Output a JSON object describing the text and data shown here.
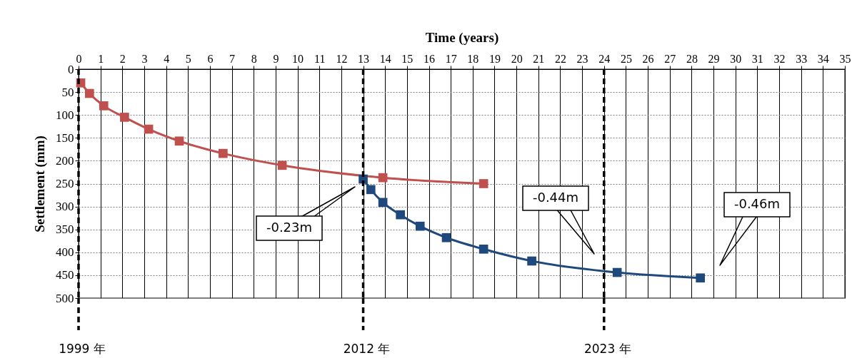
{
  "chart_data": {
    "type": "line",
    "xlabel": "Time (years)",
    "ylabel": "Settlement (mm)",
    "xlim": [
      0,
      35
    ],
    "xticks": [
      0,
      1,
      2,
      3,
      4,
      5,
      6,
      7,
      8,
      9,
      10,
      11,
      12,
      13,
      14,
      15,
      16,
      17,
      18,
      19,
      20,
      21,
      22,
      23,
      24,
      25,
      26,
      27,
      28,
      29,
      30,
      31,
      32,
      33,
      34,
      35
    ],
    "ylim": [
      500,
      0
    ],
    "yticks": [
      0,
      50,
      100,
      150,
      200,
      250,
      300,
      350,
      400,
      450,
      500
    ],
    "grid": true,
    "marker": "square",
    "line_style": "solid",
    "series": [
      {
        "color": "#c0504d",
        "x": [
          0.1,
          0.5,
          1.15,
          2.1,
          3.2,
          4.6,
          6.6,
          9.3,
          13.9,
          18.5
        ],
        "values": [
          30,
          53,
          80,
          105,
          131,
          157,
          184,
          210,
          237,
          250
        ]
      },
      {
        "color": "#1f497d",
        "x": [
          13,
          13.35,
          13.9,
          14.7,
          15.6,
          16.8,
          18.5,
          20.7,
          24.6,
          28.4
        ],
        "values": [
          240,
          263,
          291,
          318,
          343,
          368,
          393,
          419,
          444,
          456
        ]
      }
    ],
    "ref_lines": [
      {
        "axis": "x",
        "value": 0,
        "label": "1999 年",
        "line_style": "dashed",
        "color": "#000000"
      },
      {
        "axis": "x",
        "value": 13,
        "label": "2012 年",
        "line_style": "dashed",
        "color": "#000000"
      },
      {
        "axis": "x",
        "value": 24,
        "label": "2023 年",
        "line_style": "dashed",
        "color": "#000000"
      }
    ],
    "annotations": [
      "-0.23m",
      "-0.44m",
      "-0.46m"
    ]
  }
}
